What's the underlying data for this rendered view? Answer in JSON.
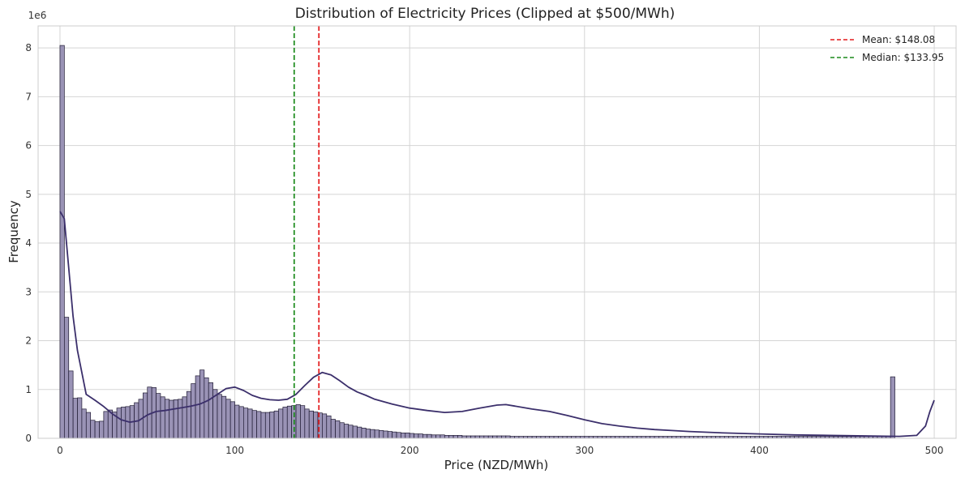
{
  "chart_data": {
    "type": "bar",
    "title": "Distribution of Electricity Prices (Clipped at $500/MWh)",
    "xlabel": "Price (NZD/MWh)",
    "ylabel": "Frequency",
    "y_scale_label": "1e6",
    "xlim": [
      -12.5,
      512.5
    ],
    "ylim": [
      0,
      8.45
    ],
    "x_ticks": [
      0,
      100,
      200,
      300,
      400,
      500
    ],
    "y_ticks": [
      0,
      1,
      2,
      3,
      4,
      5,
      6,
      7,
      8
    ],
    "bin_width": 2.5,
    "bin_start": 0,
    "values_scale": "millions",
    "values": [
      8.05,
      2.48,
      1.38,
      0.82,
      0.83,
      0.6,
      0.53,
      0.37,
      0.34,
      0.35,
      0.55,
      0.58,
      0.54,
      0.62,
      0.64,
      0.65,
      0.67,
      0.73,
      0.8,
      0.93,
      1.05,
      1.04,
      0.92,
      0.85,
      0.8,
      0.78,
      0.79,
      0.8,
      0.85,
      0.96,
      1.12,
      1.28,
      1.4,
      1.24,
      1.14,
      1.0,
      0.9,
      0.86,
      0.8,
      0.75,
      0.68,
      0.65,
      0.62,
      0.6,
      0.57,
      0.55,
      0.53,
      0.53,
      0.54,
      0.56,
      0.6,
      0.64,
      0.66,
      0.67,
      0.69,
      0.67,
      0.6,
      0.56,
      0.54,
      0.52,
      0.5,
      0.46,
      0.39,
      0.36,
      0.32,
      0.29,
      0.27,
      0.25,
      0.23,
      0.21,
      0.19,
      0.18,
      0.17,
      0.16,
      0.15,
      0.14,
      0.13,
      0.12,
      0.11,
      0.11,
      0.1,
      0.09,
      0.09,
      0.08,
      0.08,
      0.07,
      0.07,
      0.07,
      0.06,
      0.06,
      0.06,
      0.06,
      0.05,
      0.05,
      0.05,
      0.05,
      0.05,
      0.05,
      0.05,
      0.05,
      0.05,
      0.05,
      0.05,
      0.04,
      0.04,
      0.04,
      0.04,
      0.04,
      0.04,
      0.04,
      0.04,
      0.04,
      0.04,
      0.04,
      0.04,
      0.04,
      0.04,
      0.04,
      0.04,
      0.04,
      0.04,
      0.04,
      0.04,
      0.04,
      0.04,
      0.04,
      0.04,
      0.04,
      0.04,
      0.04,
      0.04,
      0.04,
      0.04,
      0.04,
      0.04,
      0.04,
      0.04,
      0.04,
      0.04,
      0.04,
      0.04,
      0.04,
      0.04,
      0.04,
      0.04,
      0.04,
      0.04,
      0.04,
      0.04,
      0.04,
      0.04,
      0.04,
      0.04,
      0.04,
      0.04,
      0.04,
      0.04,
      0.04,
      0.04,
      0.04,
      0.04,
      0.04,
      0.04,
      0.04,
      0.04,
      0.04,
      0.04,
      0.04,
      0.04,
      0.04,
      0.04,
      0.04,
      0.04,
      0.04,
      0.04,
      0.04,
      0.04,
      0.04,
      0.04,
      0.04,
      0.04,
      0.04,
      0.04,
      0.04,
      0.04,
      0.04,
      0.04,
      0.04,
      0.04,
      0.04,
      1.26
    ],
    "kde": {
      "x": [
        0,
        2.5,
        5,
        7.5,
        10,
        15,
        20,
        25,
        30,
        35,
        40,
        45,
        50,
        55,
        60,
        65,
        70,
        75,
        80,
        85,
        90,
        95,
        100,
        105,
        110,
        115,
        120,
        125,
        130,
        135,
        140,
        145,
        150,
        155,
        160,
        165,
        170,
        175,
        180,
        190,
        200,
        210,
        220,
        230,
        240,
        250,
        255,
        260,
        270,
        280,
        290,
        300,
        310,
        320,
        330,
        340,
        350,
        360,
        380,
        400,
        420,
        440,
        460,
        480,
        490,
        495,
        497.5,
        500
      ],
      "y": [
        4.65,
        4.5,
        3.5,
        2.5,
        1.8,
        0.9,
        0.78,
        0.65,
        0.5,
        0.38,
        0.33,
        0.36,
        0.48,
        0.55,
        0.57,
        0.6,
        0.63,
        0.66,
        0.7,
        0.78,
        0.9,
        1.02,
        1.05,
        0.98,
        0.88,
        0.82,
        0.79,
        0.78,
        0.8,
        0.9,
        1.08,
        1.25,
        1.35,
        1.3,
        1.18,
        1.05,
        0.95,
        0.88,
        0.8,
        0.7,
        0.62,
        0.57,
        0.53,
        0.55,
        0.62,
        0.68,
        0.69,
        0.66,
        0.6,
        0.55,
        0.47,
        0.38,
        0.3,
        0.25,
        0.21,
        0.18,
        0.16,
        0.14,
        0.11,
        0.09,
        0.07,
        0.06,
        0.05,
        0.04,
        0.06,
        0.25,
        0.55,
        0.78
      ]
    },
    "reference_lines": [
      {
        "name": "Mean: $148.08",
        "x": 148.08,
        "color": "#e31a1c",
        "style": "dashed"
      },
      {
        "name": "Median: $133.95",
        "x": 133.95,
        "color": "#1a8a1a",
        "style": "dashed"
      }
    ],
    "colors": {
      "bar_fill": "#9a93b6",
      "bar_edge": "#1f1a33",
      "kde_line": "#3b2f6b",
      "grid": "#d5d5d5",
      "frame": "#cccccc"
    },
    "grid": true,
    "legend_position": "top-right"
  }
}
